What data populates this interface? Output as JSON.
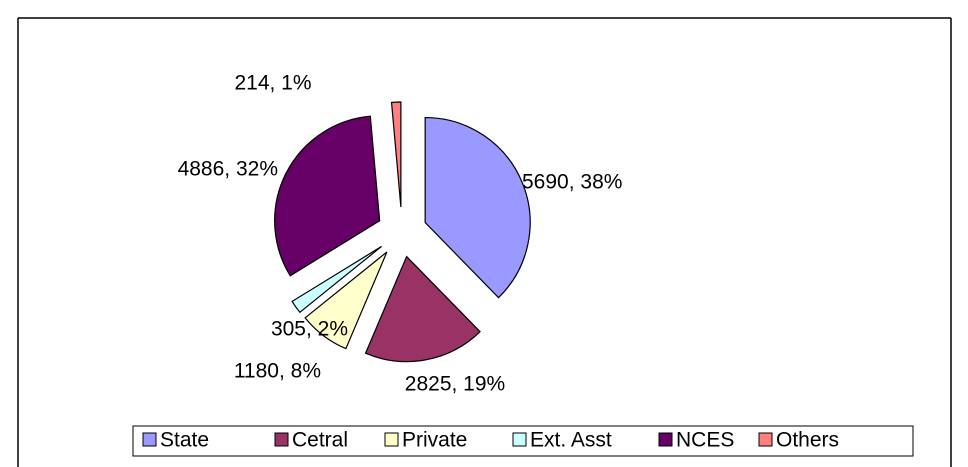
{
  "chart_data": {
    "type": "pie",
    "categories": [
      "State",
      "Cetral",
      "Private",
      "Ext. Asst",
      "NCES",
      "Others"
    ],
    "values": [
      5690,
      2825,
      1180,
      305,
      4886,
      214
    ],
    "value_labels": [
      "5690, 38%",
      "2825, 19%",
      "1180, 8%",
      "305, 2%",
      "4886, 32%",
      "214, 1%"
    ],
    "colors": [
      "#9999ff",
      "#993366",
      "#ffffcc",
      "#ccffff",
      "#660066",
      "#ff8080"
    ],
    "legend": "bottom"
  }
}
